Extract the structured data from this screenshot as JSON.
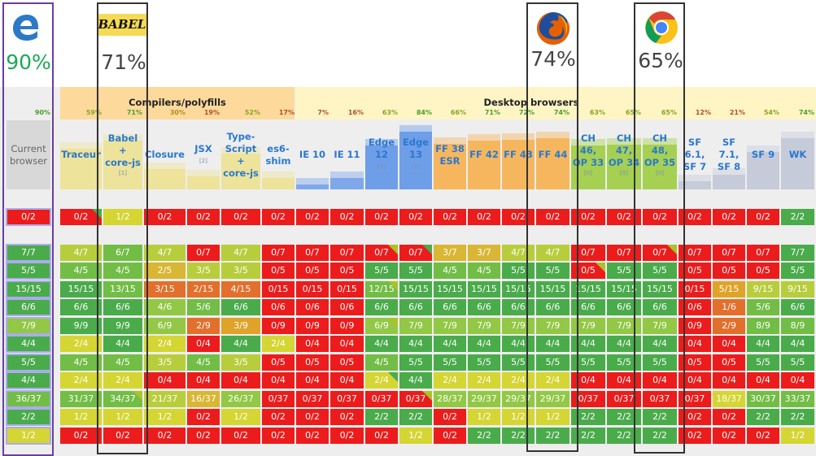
{
  "highlights": [
    {
      "logo": "edge-logo",
      "pct": "90%",
      "color": "#1aaa55"
    },
    {
      "logo": "babel-logo",
      "logo_text": "BABEL",
      "pct": "71%",
      "color": "#444444"
    },
    {
      "logo": "firefox-logo",
      "pct": "74%",
      "color": "#444444"
    },
    {
      "logo": "chrome-logo",
      "pct": "65%",
      "color": "#444444"
    }
  ],
  "groups": [
    {
      "title": "Compilers/polyfills",
      "color": "#fdd99b"
    },
    {
      "title": "Desktop browsers",
      "color": "#fff4c4"
    }
  ],
  "columns": [
    {
      "label": "Current\nbrowser",
      "pct": "90%",
      "kind": "current"
    },
    {
      "label": "Traceur",
      "pct": "59%",
      "kind": "compiler"
    },
    {
      "label": "Babel\n+\ncore-js",
      "note": "[1]",
      "pct": "71%",
      "kind": "compiler"
    },
    {
      "label": "Closure",
      "pct": "30%",
      "kind": "compiler"
    },
    {
      "label": "JSX",
      "sup": "[2]",
      "pct": "19%",
      "kind": "compiler"
    },
    {
      "label": "Type-\nScript\n+\ncore-js",
      "pct": "52%",
      "kind": "compiler"
    },
    {
      "label": "es6-\nshim",
      "pct": "17%",
      "kind": "compiler"
    },
    {
      "label": "IE 10",
      "pct": "7%",
      "kind": "ie"
    },
    {
      "label": "IE 11",
      "pct": "16%",
      "kind": "ie"
    },
    {
      "label": "Edge\n12",
      "sup": "[3]",
      "pct": "63%",
      "kind": "edge"
    },
    {
      "label": "Edge\n13",
      "sup": "[3]",
      "pct": "84%",
      "kind": "edge"
    },
    {
      "label": "FF 38\nESR",
      "pct": "66%",
      "kind": "firefox"
    },
    {
      "label": "FF 42",
      "pct": "71%",
      "kind": "firefox"
    },
    {
      "label": "FF 43",
      "pct": "72%",
      "kind": "firefox"
    },
    {
      "label": "FF 44",
      "pct": "74%",
      "kind": "firefox"
    },
    {
      "label": "CH\n46,\nOP 33",
      "note": "[0]",
      "pct": "63%",
      "kind": "chrome"
    },
    {
      "label": "CH\n47,\nOP 34",
      "note": "[0]",
      "pct": "65%",
      "kind": "chrome"
    },
    {
      "label": "CH\n48,\nOP 35",
      "note": "[0]",
      "pct": "65%",
      "kind": "chrome"
    },
    {
      "label": "SF\n6.1,\nSF 7",
      "pct": "12%",
      "kind": "safari"
    },
    {
      "label": "SF\n7.1,\nSF 8",
      "pct": "21%",
      "kind": "safari"
    },
    {
      "label": "SF 9",
      "pct": "54%",
      "kind": "safari"
    },
    {
      "label": "WK",
      "pct": "74%",
      "kind": "safari"
    }
  ],
  "kind_colors": {
    "current": "#d8d8d8",
    "compiler": "#ede39a",
    "ie": "#7fa8ea",
    "edge": "#6f9ee8",
    "firefox": "#f6b65e",
    "chrome": "#a6d052",
    "safari": "#c6cbd9"
  },
  "rows": [
    [
      "0/2",
      "0/2",
      "1/2",
      "0/2",
      "0/2",
      "0/2",
      "0/2",
      "0/2",
      "0/2",
      "0/2",
      "0/2",
      "0/2",
      "0/2",
      "0/2",
      "0/2",
      "0/2",
      "0/2",
      "0/2",
      "0/2",
      "0/2",
      "0/2",
      "2/2"
    ],
    [
      "7/7",
      "4/7",
      "6/7",
      "4/7",
      "0/7",
      "4/7",
      "0/7",
      "0/7",
      "0/7",
      "0/7",
      "0/7",
      "3/7",
      "3/7",
      "4/7",
      "4/7",
      "0/7",
      "0/7",
      "0/7",
      "0/7",
      "0/7",
      "0/7",
      "7/7"
    ],
    [
      "5/5",
      "4/5",
      "4/5",
      "2/5",
      "3/5",
      "3/5",
      "0/5",
      "0/5",
      "0/5",
      "5/5",
      "5/5",
      "4/5",
      "4/5",
      "5/5",
      "5/5",
      "0/5",
      "5/5",
      "5/5",
      "0/5",
      "0/5",
      "0/5",
      "5/5"
    ],
    [
      "15/15",
      "15/15",
      "13/15",
      "3/15",
      "2/15",
      "4/15",
      "0/15",
      "0/15",
      "0/15",
      "12/15",
      "15/15",
      "15/15",
      "15/15",
      "15/15",
      "15/15",
      "15/15",
      "15/15",
      "15/15",
      "0/15",
      "5/15",
      "9/15",
      "9/15"
    ],
    [
      "6/6",
      "6/6",
      "6/6",
      "4/6",
      "5/6",
      "6/6",
      "0/6",
      "0/6",
      "0/6",
      "6/6",
      "6/6",
      "6/6",
      "6/6",
      "6/6",
      "6/6",
      "6/6",
      "6/6",
      "6/6",
      "0/6",
      "1/6",
      "5/6",
      "6/6"
    ],
    [
      "7/9",
      "9/9",
      "9/9",
      "6/9",
      "2/9",
      "3/9",
      "0/9",
      "0/9",
      "0/9",
      "6/9",
      "7/9",
      "7/9",
      "7/9",
      "7/9",
      "7/9",
      "7/9",
      "7/9",
      "7/9",
      "0/9",
      "2/9",
      "8/9",
      "8/9"
    ],
    [
      "4/4",
      "2/4",
      "4/4",
      "2/4",
      "0/4",
      "4/4",
      "2/4",
      "0/4",
      "0/4",
      "4/4",
      "4/4",
      "4/4",
      "4/4",
      "4/4",
      "4/4",
      "4/4",
      "4/4",
      "4/4",
      "0/4",
      "0/4",
      "4/4",
      "4/4"
    ],
    [
      "5/5",
      "4/5",
      "4/5",
      "3/5",
      "4/5",
      "3/5",
      "0/5",
      "0/5",
      "0/5",
      "4/5",
      "5/5",
      "5/5",
      "5/5",
      "5/5",
      "5/5",
      "5/5",
      "5/5",
      "5/5",
      "0/5",
      "0/5",
      "5/5",
      "5/5"
    ],
    [
      "4/4",
      "2/4",
      "2/4",
      "0/4",
      "0/4",
      "0/4",
      "0/4",
      "0/4",
      "0/4",
      "2/4",
      "4/4",
      "2/4",
      "2/4",
      "2/4",
      "2/4",
      "0/4",
      "0/4",
      "0/4",
      "0/4",
      "0/4",
      "0/4",
      "0/4"
    ],
    [
      "36/37",
      "31/37",
      "34/37",
      "21/37",
      "16/37",
      "26/37",
      "0/37",
      "0/37",
      "0/37",
      "0/37",
      "0/37",
      "28/37",
      "29/37",
      "29/37",
      "29/37",
      "0/37",
      "0/37",
      "0/37",
      "0/37",
      "18/37",
      "30/37",
      "33/37"
    ],
    [
      "2/2",
      "1/2",
      "1/2",
      "1/2",
      "0/2",
      "1/2",
      "0/2",
      "0/2",
      "0/2",
      "2/2",
      "2/2",
      "0/2",
      "1/2",
      "1/2",
      "1/2",
      "2/2",
      "2/2",
      "2/2",
      "0/2",
      "0/2",
      "2/2",
      "2/2"
    ],
    [
      "1/2",
      "0/2",
      "0/2",
      "0/2",
      "0/2",
      "0/2",
      "0/2",
      "0/2",
      "0/2",
      "0/2",
      "1/2",
      "0/2",
      "2/2",
      "2/2",
      "2/2",
      "2/2",
      "2/2",
      "2/2",
      "0/2",
      "0/2",
      "0/2",
      "1/2"
    ]
  ],
  "flagged_cells": [
    {
      "row": 0,
      "col": 1,
      "color": "#43a843"
    },
    {
      "row": 1,
      "col": 9,
      "color": "#a8c020"
    },
    {
      "row": 1,
      "col": 10,
      "color": "#43a843"
    },
    {
      "row": 1,
      "col": 17,
      "color": "#a8c020"
    },
    {
      "row": 2,
      "col": 15,
      "color": "#a8c020"
    },
    {
      "row": 3,
      "col": 9,
      "color": "#a8c020"
    },
    {
      "row": 5,
      "col": 9,
      "color": "#a8c020"
    },
    {
      "row": 8,
      "col": 9,
      "color": "#43a843"
    },
    {
      "row": 9,
      "col": 2,
      "color": "#a8c020"
    },
    {
      "row": 9,
      "col": 10,
      "color": "#a8c020"
    }
  ]
}
